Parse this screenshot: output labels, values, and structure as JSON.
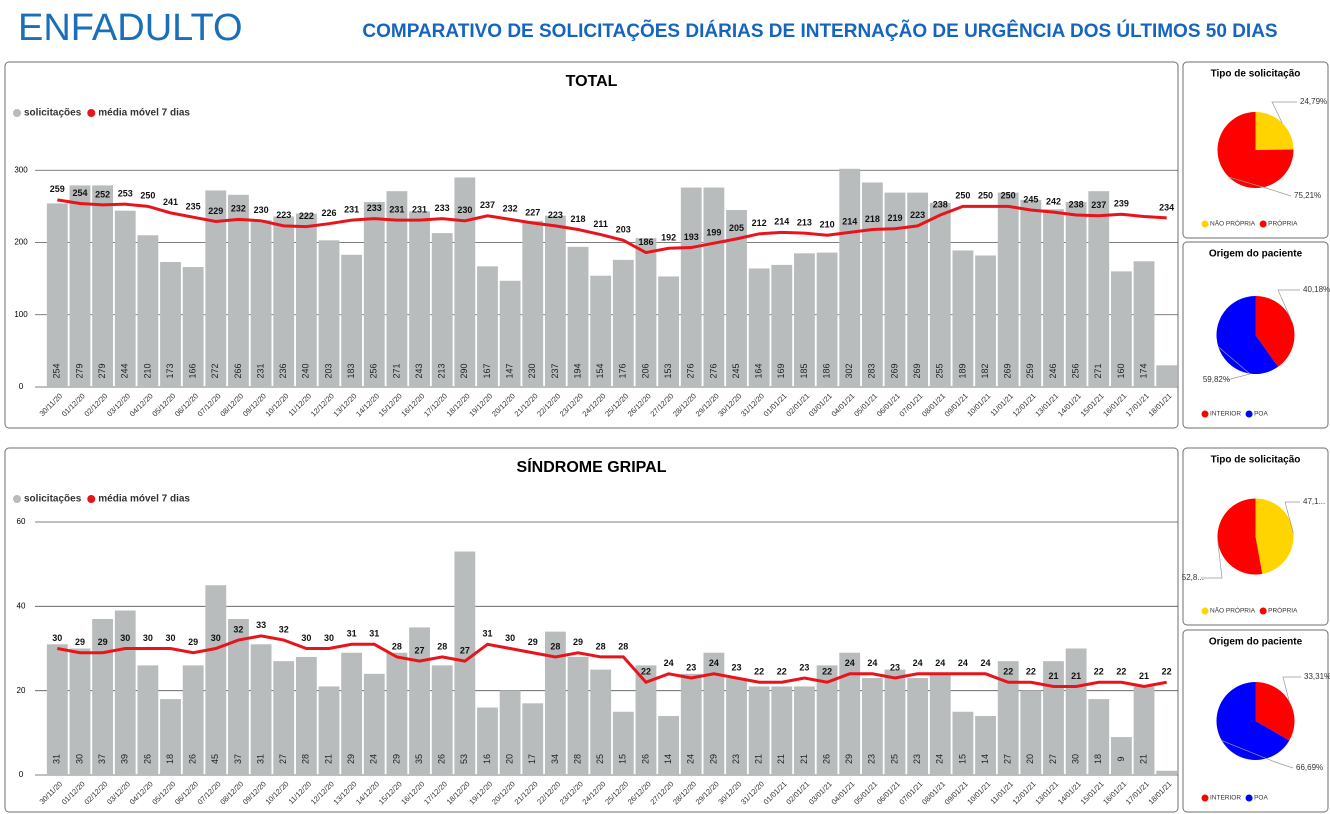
{
  "header": {
    "logo": "ENFADULTO",
    "title": "COMPARATIVO DE SOLICITAÇÕES DIÁRIAS DE INTERNAÇÃO DE URGÊNCIA DOS ÚLTIMOS 50 DIAS"
  },
  "chart_data": [
    {
      "type": "combo",
      "title": "TOTAL",
      "categories": [
        "30/11/20",
        "01/12/20",
        "02/12/20",
        "03/12/20",
        "04/12/20",
        "05/12/20",
        "06/12/20",
        "07/12/20",
        "08/12/20",
        "09/12/20",
        "10/12/20",
        "11/12/20",
        "12/12/20",
        "13/12/20",
        "14/12/20",
        "15/12/20",
        "16/12/20",
        "17/12/20",
        "18/12/20",
        "19/12/20",
        "20/12/20",
        "21/12/20",
        "22/12/20",
        "23/12/20",
        "24/12/20",
        "25/12/20",
        "26/12/20",
        "27/12/20",
        "28/12/20",
        "29/12/20",
        "30/12/20",
        "31/12/20",
        "01/01/21",
        "02/01/21",
        "03/01/21",
        "04/01/21",
        "05/01/21",
        "06/01/21",
        "07/01/21",
        "08/01/21",
        "09/01/21",
        "10/01/21",
        "11/01/21",
        "12/01/21",
        "13/01/21",
        "14/01/21",
        "15/01/21",
        "16/01/21",
        "17/01/21",
        "18/01/21"
      ],
      "series": [
        {
          "name": "solicitações",
          "type": "bar",
          "color": "#b9bcbd",
          "values": [
            254,
            279,
            279,
            244,
            210,
            173,
            166,
            272,
            266,
            231,
            236,
            240,
            203,
            183,
            256,
            271,
            243,
            213,
            290,
            167,
            147,
            230,
            237,
            194,
            154,
            176,
            206,
            153,
            276,
            276,
            245,
            164,
            169,
            185,
            186,
            302,
            283,
            269,
            269,
            255,
            189,
            182,
            269,
            259,
            246,
            256,
            271,
            160,
            174,
            30
          ],
          "value_labels": [
            "254",
            "279",
            "279",
            "244",
            "210",
            "173",
            "166",
            "272",
            "266",
            "231",
            "236",
            "240",
            "203",
            "183",
            "256",
            "271",
            "243",
            "213",
            "290",
            "167",
            "147",
            "230",
            "237",
            "194",
            "154",
            "176",
            "206",
            "153",
            "276",
            "276",
            "245",
            "164",
            "169",
            "185",
            "186",
            "302",
            "283",
            "269",
            "269",
            "255",
            "189",
            "182",
            "269",
            "259",
            "246",
            "256",
            "271",
            "160",
            "174",
            null
          ]
        },
        {
          "name": "média móvel 7 dias",
          "type": "line",
          "color": "#e8141c",
          "values": [
            259,
            254,
            252,
            253,
            250,
            241,
            235,
            229,
            232,
            230,
            223,
            222,
            226,
            231,
            233,
            231,
            231,
            233,
            230,
            237,
            232,
            227,
            223,
            218,
            211,
            203,
            186,
            192,
            193,
            199,
            205,
            212,
            214,
            213,
            210,
            214,
            218,
            219,
            223,
            238,
            250,
            250,
            250,
            245,
            242,
            238,
            237,
            239,
            236,
            234
          ],
          "value_labels": [
            "259",
            "254",
            "252",
            "253",
            "250",
            "241",
            "235",
            "229",
            "232",
            "230",
            "223",
            "222",
            "226",
            "231",
            "233",
            "231",
            "231",
            "233",
            "230",
            "237",
            "232",
            "227",
            "223",
            "218",
            "211",
            "203",
            "186",
            "192",
            "193",
            "199",
            "205",
            "212",
            "214",
            "213",
            "210",
            "214",
            "218",
            "219",
            "223",
            "238",
            "250",
            "250",
            "250",
            "245",
            "242",
            "238",
            "237",
            "239",
            null,
            "234"
          ]
        }
      ],
      "ylim": [
        0,
        310
      ],
      "yticks": [
        0,
        100,
        200,
        300
      ],
      "grid": true
    },
    {
      "type": "pie",
      "title": "Tipo de solicitação",
      "categories": [
        "NÃO PRÓPRIA",
        "PRÓPRIA"
      ],
      "values": [
        24.79,
        75.21
      ],
      "value_labels": [
        "24,79%",
        "75,21%"
      ],
      "colors": [
        "#ffd400",
        "#ff0000"
      ]
    },
    {
      "type": "pie",
      "title": "Origem do paciente",
      "categories": [
        "INTERIOR",
        "POA"
      ],
      "values": [
        40.18,
        59.82
      ],
      "value_labels": [
        "40,18%",
        "59,82%"
      ],
      "colors": [
        "#ff0000",
        "#0000ff"
      ]
    },
    {
      "type": "combo",
      "title": "SÍNDROME GRIPAL",
      "categories": [
        "30/11/20",
        "01/12/20",
        "02/12/20",
        "03/12/20",
        "04/12/20",
        "05/12/20",
        "06/12/20",
        "07/12/20",
        "08/12/20",
        "09/12/20",
        "10/12/20",
        "11/12/20",
        "12/12/20",
        "13/12/20",
        "14/12/20",
        "15/12/20",
        "16/12/20",
        "17/12/20",
        "18/12/20",
        "19/12/20",
        "20/12/20",
        "21/12/20",
        "22/12/20",
        "23/12/20",
        "24/12/20",
        "25/12/20",
        "26/12/20",
        "27/12/20",
        "28/12/20",
        "29/12/20",
        "30/12/20",
        "31/12/20",
        "01/01/21",
        "02/01/21",
        "03/01/21",
        "04/01/21",
        "05/01/21",
        "06/01/21",
        "07/01/21",
        "08/01/21",
        "09/01/21",
        "10/01/21",
        "11/01/21",
        "12/01/21",
        "13/01/21",
        "14/01/21",
        "15/01/21",
        "16/01/21",
        "17/01/21",
        "18/01/21"
      ],
      "series": [
        {
          "name": "solicitações",
          "type": "bar",
          "color": "#b9bcbd",
          "values": [
            31,
            30,
            37,
            39,
            26,
            18,
            26,
            45,
            37,
            31,
            27,
            28,
            21,
            29,
            24,
            29,
            35,
            26,
            53,
            16,
            20,
            17,
            34,
            28,
            25,
            15,
            26,
            14,
            24,
            29,
            23,
            21,
            21,
            21,
            26,
            29,
            23,
            25,
            23,
            24,
            15,
            14,
            27,
            20,
            27,
            30,
            18,
            9,
            21,
            1
          ],
          "value_labels": [
            "31",
            "30",
            "37",
            "39",
            "26",
            "18",
            "26",
            "45",
            "37",
            "31",
            "27",
            "28",
            "21",
            "29",
            "24",
            "29",
            "35",
            "26",
            "53",
            "16",
            "20",
            "17",
            "34",
            "28",
            "25",
            "15",
            "26",
            "14",
            "24",
            "29",
            "23",
            "21",
            "21",
            "21",
            "26",
            "29",
            "23",
            "25",
            "23",
            "24",
            "15",
            "14",
            "27",
            "20",
            "27",
            "30",
            "18",
            "9",
            "21",
            null
          ]
        },
        {
          "name": "média móvel 7 dias",
          "type": "line",
          "color": "#e8141c",
          "values": [
            30,
            29,
            29,
            30,
            30,
            30,
            29,
            30,
            32,
            33,
            32,
            30,
            30,
            31,
            31,
            28,
            27,
            28,
            27,
            31,
            30,
            29,
            28,
            29,
            28,
            28,
            22,
            24,
            23,
            24,
            23,
            22,
            22,
            23,
            22,
            24,
            24,
            23,
            24,
            24,
            24,
            24,
            22,
            22,
            21,
            21,
            22,
            22,
            21,
            22
          ],
          "value_labels": [
            "30",
            "29",
            "29",
            "30",
            "30",
            "30",
            "29",
            "30",
            "32",
            "33",
            "32",
            "30",
            "30",
            "31",
            "31",
            "28",
            "27",
            "28",
            "27",
            "31",
            "30",
            "29",
            "28",
            "29",
            "28",
            "28",
            "22",
            "24",
            "23",
            "24",
            "23",
            "22",
            "22",
            "23",
            "22",
            "24",
            "24",
            "23",
            "24",
            "24",
            "24",
            "24",
            "22",
            "22",
            "21",
            "21",
            "22",
            "22",
            "21",
            "22"
          ]
        }
      ],
      "ylim": [
        0,
        60
      ],
      "yticks": [
        0,
        20,
        40,
        60
      ],
      "grid": true
    },
    {
      "type": "pie",
      "title": "Tipo de solicitação",
      "categories": [
        "NÃO PRÓPRIA",
        "PRÓPRIA"
      ],
      "values": [
        47.15,
        52.85
      ],
      "value_labels": [
        "47,1...",
        "52,8..."
      ],
      "colors": [
        "#ffd400",
        "#ff0000"
      ]
    },
    {
      "type": "pie",
      "title": "Origem do paciente",
      "categories": [
        "INTERIOR",
        "POA"
      ],
      "values": [
        33.31,
        66.69
      ],
      "value_labels": [
        "33,31%",
        "66,69%"
      ],
      "colors": [
        "#ff0000",
        "#0000ff"
      ]
    }
  ]
}
